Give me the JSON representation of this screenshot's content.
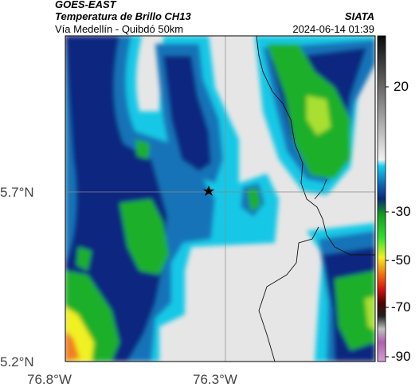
{
  "header": {
    "satellite": "GOES-EAST",
    "product": "Temperatura de Brillo CH13",
    "region": "Vía Medellín - Quibdó 50km",
    "organization": "SIATA",
    "datetime": "2024-06-14 01:39"
  },
  "axes": {
    "lat_labels": [
      "5.7°N",
      "5.2°N"
    ],
    "lon_labels": [
      "76.8°W",
      "76.3°W"
    ]
  },
  "colorbar": {
    "labels": [
      "20",
      "-30",
      "-50",
      "-70",
      "-90"
    ]
  },
  "colors": {
    "cloud_free": "#e6e6e6",
    "cyan": "#12c8e6",
    "blue": "#1373b8",
    "navy": "#0a2880",
    "green": "#1fb02a",
    "yellow": "#f0f020"
  }
}
